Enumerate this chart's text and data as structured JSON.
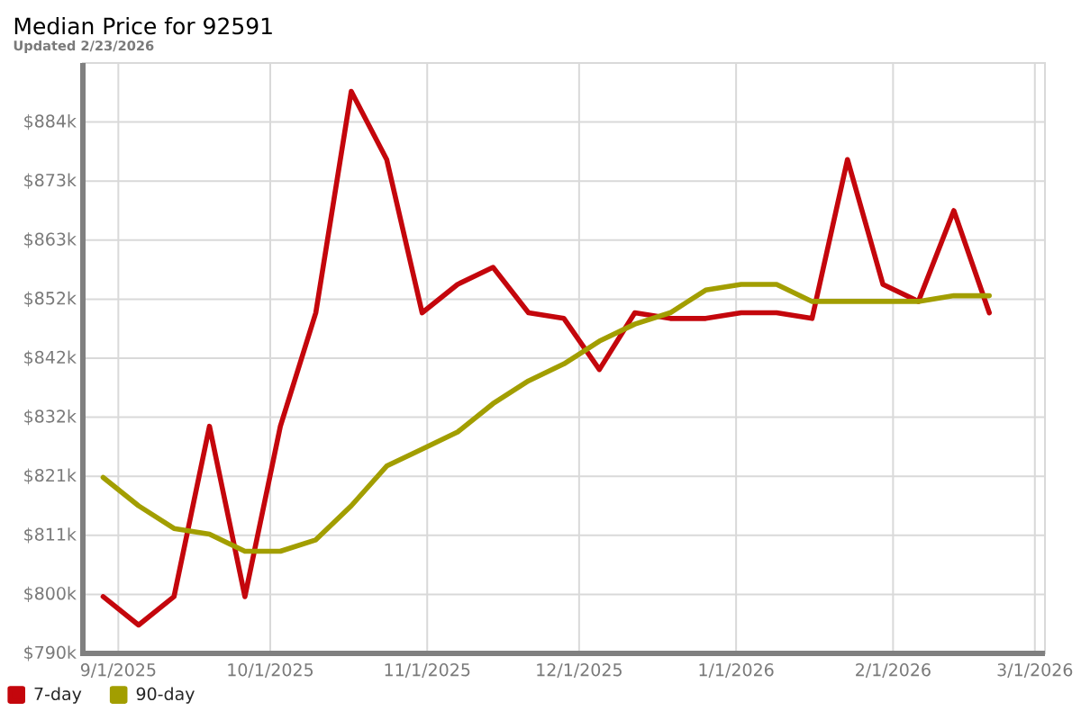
{
  "chart_data": {
    "type": "line",
    "title": "Median Price for 92591",
    "subtitle": "Updated 2/23/2026",
    "x": [
      "2025-08-29",
      "2025-09-05",
      "2025-09-12",
      "2025-09-19",
      "2025-09-26",
      "2025-10-03",
      "2025-10-10",
      "2025-10-17",
      "2025-10-24",
      "2025-10-31",
      "2025-11-07",
      "2025-11-14",
      "2025-11-21",
      "2025-11-28",
      "2025-12-05",
      "2025-12-12",
      "2025-12-19",
      "2025-12-26",
      "2026-01-02",
      "2026-01-09",
      "2026-01-16",
      "2026-01-23",
      "2026-01-30",
      "2026-02-06",
      "2026-02-13",
      "2026-02-20"
    ],
    "series": [
      {
        "name": "7-day",
        "color": "#c4060c",
        "values": [
          800,
          795,
          800,
          830,
          800,
          830,
          850,
          889,
          877,
          850,
          855,
          858,
          850,
          849,
          840,
          850,
          849,
          849,
          850,
          850,
          849,
          877,
          855,
          852,
          868,
          850
        ]
      },
      {
        "name": "90-day",
        "color": "#a29e00",
        "values": [
          821,
          816,
          812,
          811,
          808,
          808,
          810,
          816,
          823,
          826,
          829,
          834,
          838,
          841,
          845,
          848,
          850,
          854,
          855,
          855,
          852,
          852,
          852,
          852,
          853,
          853
        ]
      }
    ],
    "xlim": [
      "2025-08-25",
      "2026-03-03"
    ],
    "xticks": [
      {
        "value": "2025-09-01",
        "label": "9/1/2025"
      },
      {
        "value": "2025-10-01",
        "label": "10/1/2025"
      },
      {
        "value": "2025-11-01",
        "label": "11/1/2025"
      },
      {
        "value": "2025-12-01",
        "label": "12/1/2025"
      },
      {
        "value": "2026-01-01",
        "label": "1/1/2026"
      },
      {
        "value": "2026-02-01",
        "label": "2/1/2026"
      },
      {
        "value": "2026-03-01",
        "label": "3/1/2026"
      }
    ],
    "ylim": [
      790,
      894
    ],
    "yticks": [
      {
        "value": 790,
        "label": "$790k"
      },
      {
        "value": 800.4,
        "label": "$800k"
      },
      {
        "value": 810.8,
        "label": "$811k"
      },
      {
        "value": 821.2,
        "label": "$821k"
      },
      {
        "value": 831.6,
        "label": "$832k"
      },
      {
        "value": 842,
        "label": "$842k"
      },
      {
        "value": 852.4,
        "label": "$852k"
      },
      {
        "value": 862.8,
        "label": "$863k"
      },
      {
        "value": 873.2,
        "label": "$873k"
      },
      {
        "value": 883.6,
        "label": "$884k"
      }
    ],
    "grid": true,
    "legend": "bottom",
    "marker": "none",
    "line_style": "solid"
  }
}
